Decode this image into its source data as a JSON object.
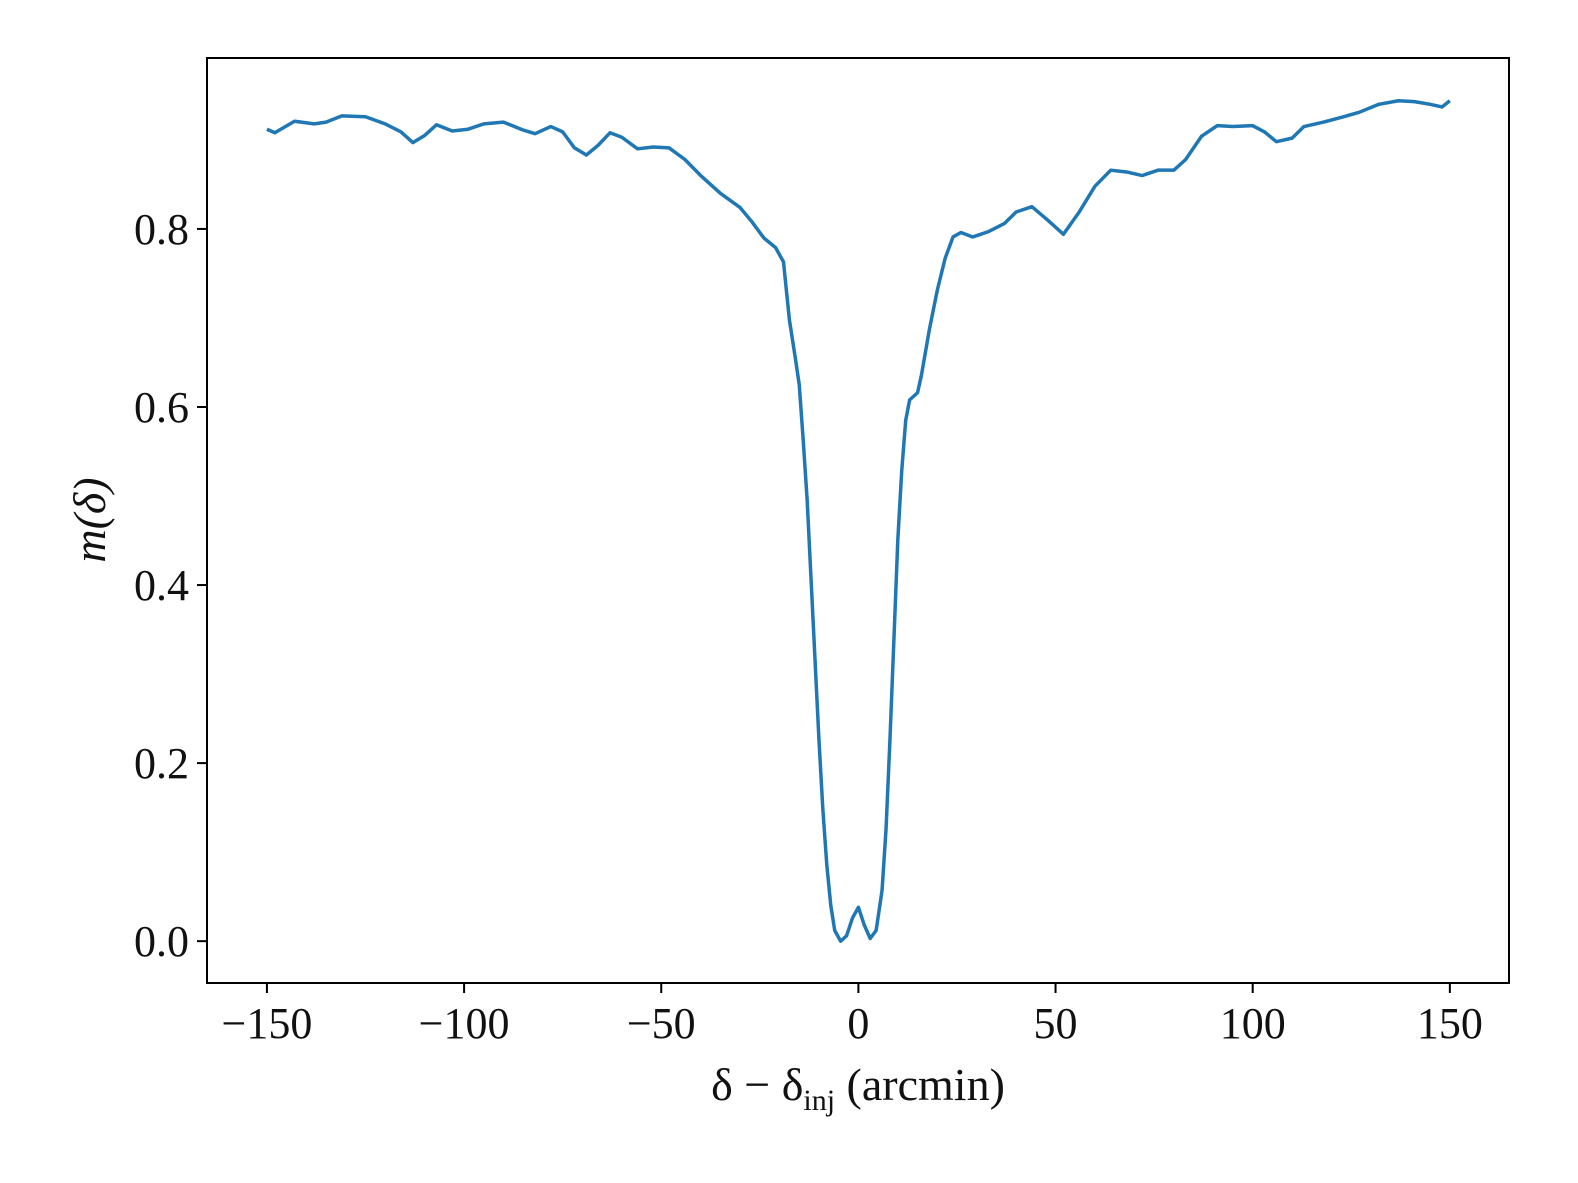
{
  "chart_data": {
    "type": "line",
    "xlabel": [
      "δ − δ",
      "inj",
      " (arcmin)"
    ],
    "ylabel": "m(δ)",
    "xlim": [
      -165.2,
      165.0
    ],
    "ylim": [
      -0.047,
      0.992
    ],
    "xticks": [
      {
        "value": -150,
        "label": "−150"
      },
      {
        "value": -100,
        "label": "−100"
      },
      {
        "value": -50,
        "label": "−50"
      },
      0,
      50,
      100,
      150
    ],
    "yticks": [
      {
        "value": 0,
        "label": "0.0"
      },
      0.2,
      0.4,
      0.6,
      0.8
    ],
    "series": [
      {
        "name": "m(δ)",
        "color": "#1f77b4",
        "x": [
          -150,
          -148,
          -143,
          -138,
          -135,
          -131,
          -125,
          -120,
          -116,
          -113,
          -110,
          -107,
          -103,
          -99,
          -95,
          -90,
          -85,
          -82,
          -78,
          -75,
          -72,
          -69,
          -66,
          -63,
          -60,
          -56,
          -52,
          -48,
          -44,
          -40,
          -35,
          -30,
          -27,
          -24,
          -21,
          -19,
          -17.5,
          -16,
          -15,
          -14,
          -13,
          -12,
          -11,
          -10,
          -9,
          -8,
          -7,
          -6,
          -4.5,
          -3,
          -1.5,
          0,
          1.5,
          3,
          4.5,
          6,
          7,
          8,
          9,
          10,
          11,
          12,
          13,
          15,
          16,
          18,
          20,
          22,
          24,
          26,
          29,
          33,
          37,
          40,
          44,
          48,
          52,
          56,
          60,
          64,
          68,
          72,
          76,
          80,
          83,
          87,
          91,
          95,
          100,
          103,
          106,
          110,
          113,
          118,
          123,
          127,
          132,
          137,
          141,
          145,
          148,
          150
        ],
        "values": [
          0.912,
          0.908,
          0.921,
          0.918,
          0.92,
          0.927,
          0.926,
          0.918,
          0.909,
          0.897,
          0.905,
          0.917,
          0.91,
          0.912,
          0.918,
          0.92,
          0.911,
          0.907,
          0.915,
          0.909,
          0.891,
          0.883,
          0.894,
          0.908,
          0.903,
          0.89,
          0.892,
          0.891,
          0.878,
          0.86,
          0.84,
          0.824,
          0.808,
          0.79,
          0.779,
          0.763,
          0.698,
          0.655,
          0.625,
          0.563,
          0.496,
          0.406,
          0.316,
          0.226,
          0.147,
          0.085,
          0.04,
          0.012,
          0.0,
          0.006,
          0.026,
          0.038,
          0.018,
          0.003,
          0.012,
          0.057,
          0.125,
          0.226,
          0.338,
          0.451,
          0.529,
          0.585,
          0.608,
          0.616,
          0.636,
          0.687,
          0.731,
          0.767,
          0.791,
          0.796,
          0.791,
          0.797,
          0.806,
          0.819,
          0.825,
          0.81,
          0.794,
          0.819,
          0.848,
          0.866,
          0.864,
          0.86,
          0.866,
          0.866,
          0.878,
          0.904,
          0.916,
          0.915,
          0.916,
          0.909,
          0.898,
          0.902,
          0.915,
          0.92,
          0.926,
          0.931,
          0.94,
          0.944,
          0.943,
          0.94,
          0.937,
          0.944
        ]
      }
    ]
  }
}
